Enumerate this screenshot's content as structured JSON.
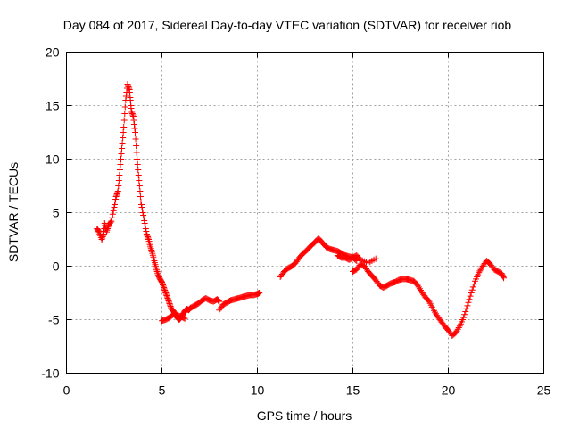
{
  "chart_data": {
    "type": "scatter",
    "title": "Day 084 of 2017, Sidereal Day-to-day VTEC variation (SDTVAR) for receiver riob",
    "xlabel": "GPS time / hours",
    "ylabel": "SDTVAR / TECUs",
    "xlim": [
      0,
      25
    ],
    "ylim": [
      -10,
      20
    ],
    "xticks": [
      0,
      5,
      10,
      15,
      20,
      25
    ],
    "yticks": [
      -10,
      -5,
      0,
      5,
      10,
      15,
      20
    ],
    "grid": true,
    "marker": "+",
    "color": "#ff0000",
    "series": [
      {
        "name": "segment-1",
        "x": [
          1.6,
          1.7,
          1.85,
          1.95,
          2.0,
          2.1,
          2.2,
          2.35,
          2.5,
          2.6,
          2.7,
          2.8,
          2.9,
          3.0,
          3.1,
          3.2,
          3.3,
          3.35,
          3.4,
          3.5,
          3.6,
          3.7,
          3.8,
          3.9,
          4.0,
          4.1,
          4.2,
          4.3,
          4.4,
          4.5,
          4.6,
          4.7,
          4.8,
          4.9,
          5.0,
          5.1,
          5.2,
          5.3,
          5.4,
          5.5,
          5.6,
          5.7,
          5.8,
          5.9,
          6.0,
          6.1,
          6.2,
          6.3,
          6.4,
          6.5,
          6.7,
          6.9,
          7.1,
          7.3,
          7.5,
          7.7,
          7.9,
          8.0
        ],
        "y": [
          3.5,
          3.2,
          2.5,
          3.0,
          4.0,
          3.2,
          3.8,
          4.2,
          5.5,
          6.5,
          7.0,
          9.0,
          11.0,
          13.0,
          15.5,
          17.0,
          16.5,
          15.5,
          14.5,
          14.0,
          12.5,
          10.0,
          8.0,
          6.0,
          5.0,
          4.0,
          3.0,
          2.5,
          1.8,
          1.2,
          0.5,
          -0.2,
          -0.8,
          -1.2,
          -1.5,
          -2.0,
          -2.5,
          -3.0,
          -3.5,
          -4.0,
          -4.2,
          -4.5,
          -4.8,
          -5.0,
          -4.8,
          -4.5,
          -4.2,
          -4.0,
          -4.1,
          -3.9,
          -3.7,
          -3.5,
          -3.2,
          -3.0,
          -3.2,
          -3.3,
          -3.1,
          -3.3
        ]
      },
      {
        "name": "segment-2",
        "x": [
          5.0,
          5.2,
          5.4,
          5.6,
          5.8,
          6.0,
          6.2
        ],
        "y": [
          -5.1,
          -5.0,
          -4.8,
          -4.5,
          -4.6,
          -4.7,
          -4.9
        ]
      },
      {
        "name": "segment-3",
        "x": [
          8.0,
          8.2,
          8.4,
          8.6,
          8.8,
          9.0,
          9.2,
          9.4,
          9.6,
          9.8,
          10.0,
          10.1
        ],
        "y": [
          -4.1,
          -3.6,
          -3.4,
          -3.2,
          -3.1,
          -3.0,
          -2.9,
          -2.8,
          -2.7,
          -2.7,
          -2.6,
          -2.5
        ]
      },
      {
        "name": "segment-4",
        "x": [
          11.2,
          11.4,
          11.6,
          11.8,
          12.0,
          12.2,
          12.4,
          12.6,
          12.8,
          13.0,
          13.2,
          13.4,
          13.6,
          13.8,
          14.0,
          14.2,
          14.4,
          14.6,
          14.8,
          15.0,
          15.2
        ],
        "y": [
          -1.0,
          -0.5,
          -0.2,
          0.0,
          0.3,
          0.8,
          1.2,
          1.5,
          1.9,
          2.2,
          2.6,
          2.2,
          1.8,
          1.6,
          1.5,
          1.4,
          1.2,
          1.0,
          0.9,
          0.8,
          0.5
        ]
      },
      {
        "name": "segment-5",
        "x": [
          15.0,
          15.2,
          15.4,
          15.6,
          15.8,
          16.0,
          16.2,
          16.4,
          16.6,
          16.8,
          17.0,
          17.2,
          17.4,
          17.6,
          17.8,
          18.0,
          18.2,
          18.4,
          18.6,
          18.8,
          19.0,
          19.2,
          19.4,
          19.6,
          19.8,
          20.0,
          20.2,
          20.4,
          20.6,
          20.8,
          21.0,
          21.2,
          21.4,
          21.6,
          21.8,
          22.0,
          22.2,
          22.4,
          22.6,
          22.8,
          22.9
        ],
        "y": [
          -0.5,
          -0.3,
          0.2,
          0.0,
          -0.5,
          -0.9,
          -1.3,
          -1.8,
          -2.0,
          -1.8,
          -1.6,
          -1.5,
          -1.3,
          -1.2,
          -1.2,
          -1.3,
          -1.4,
          -1.8,
          -2.4,
          -2.9,
          -3.3,
          -4.0,
          -4.6,
          -5.1,
          -5.6,
          -6.0,
          -6.5,
          -6.2,
          -5.6,
          -4.8,
          -3.7,
          -2.5,
          -1.4,
          -0.6,
          0.0,
          0.5,
          0.2,
          -0.3,
          -0.5,
          -0.7,
          -1.1
        ]
      },
      {
        "name": "segment-6",
        "x": [
          14.2,
          14.4,
          14.6,
          14.8,
          15.0,
          15.2,
          15.4,
          15.8,
          16.2
        ],
        "y": [
          1.0,
          0.8,
          0.8,
          0.6,
          0.8,
          1.0,
          0.6,
          0.3,
          0.7
        ]
      }
    ]
  }
}
